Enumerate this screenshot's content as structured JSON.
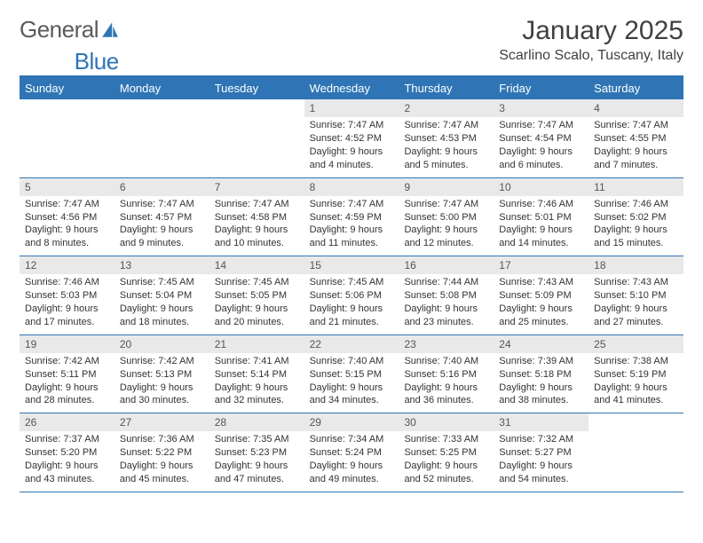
{
  "brand": {
    "part1": "General",
    "part2": "Blue"
  },
  "title": "January 2025",
  "location": "Scarlino Scalo, Tuscany, Italy",
  "colors": {
    "header_bg": "#2f75b5",
    "header_text": "#ffffff",
    "daynum_bg": "#e9e9e9",
    "border": "#2f75b5",
    "body_text": "#333333"
  },
  "weekdays": [
    "Sunday",
    "Monday",
    "Tuesday",
    "Wednesday",
    "Thursday",
    "Friday",
    "Saturday"
  ],
  "weeks": [
    [
      {
        "n": "",
        "lines": []
      },
      {
        "n": "",
        "lines": []
      },
      {
        "n": "",
        "lines": []
      },
      {
        "n": "1",
        "lines": [
          "Sunrise: 7:47 AM",
          "Sunset: 4:52 PM",
          "Daylight: 9 hours",
          "and 4 minutes."
        ]
      },
      {
        "n": "2",
        "lines": [
          "Sunrise: 7:47 AM",
          "Sunset: 4:53 PM",
          "Daylight: 9 hours",
          "and 5 minutes."
        ]
      },
      {
        "n": "3",
        "lines": [
          "Sunrise: 7:47 AM",
          "Sunset: 4:54 PM",
          "Daylight: 9 hours",
          "and 6 minutes."
        ]
      },
      {
        "n": "4",
        "lines": [
          "Sunrise: 7:47 AM",
          "Sunset: 4:55 PM",
          "Daylight: 9 hours",
          "and 7 minutes."
        ]
      }
    ],
    [
      {
        "n": "5",
        "lines": [
          "Sunrise: 7:47 AM",
          "Sunset: 4:56 PM",
          "Daylight: 9 hours",
          "and 8 minutes."
        ]
      },
      {
        "n": "6",
        "lines": [
          "Sunrise: 7:47 AM",
          "Sunset: 4:57 PM",
          "Daylight: 9 hours",
          "and 9 minutes."
        ]
      },
      {
        "n": "7",
        "lines": [
          "Sunrise: 7:47 AM",
          "Sunset: 4:58 PM",
          "Daylight: 9 hours",
          "and 10 minutes."
        ]
      },
      {
        "n": "8",
        "lines": [
          "Sunrise: 7:47 AM",
          "Sunset: 4:59 PM",
          "Daylight: 9 hours",
          "and 11 minutes."
        ]
      },
      {
        "n": "9",
        "lines": [
          "Sunrise: 7:47 AM",
          "Sunset: 5:00 PM",
          "Daylight: 9 hours",
          "and 12 minutes."
        ]
      },
      {
        "n": "10",
        "lines": [
          "Sunrise: 7:46 AM",
          "Sunset: 5:01 PM",
          "Daylight: 9 hours",
          "and 14 minutes."
        ]
      },
      {
        "n": "11",
        "lines": [
          "Sunrise: 7:46 AM",
          "Sunset: 5:02 PM",
          "Daylight: 9 hours",
          "and 15 minutes."
        ]
      }
    ],
    [
      {
        "n": "12",
        "lines": [
          "Sunrise: 7:46 AM",
          "Sunset: 5:03 PM",
          "Daylight: 9 hours",
          "and 17 minutes."
        ]
      },
      {
        "n": "13",
        "lines": [
          "Sunrise: 7:45 AM",
          "Sunset: 5:04 PM",
          "Daylight: 9 hours",
          "and 18 minutes."
        ]
      },
      {
        "n": "14",
        "lines": [
          "Sunrise: 7:45 AM",
          "Sunset: 5:05 PM",
          "Daylight: 9 hours",
          "and 20 minutes."
        ]
      },
      {
        "n": "15",
        "lines": [
          "Sunrise: 7:45 AM",
          "Sunset: 5:06 PM",
          "Daylight: 9 hours",
          "and 21 minutes."
        ]
      },
      {
        "n": "16",
        "lines": [
          "Sunrise: 7:44 AM",
          "Sunset: 5:08 PM",
          "Daylight: 9 hours",
          "and 23 minutes."
        ]
      },
      {
        "n": "17",
        "lines": [
          "Sunrise: 7:43 AM",
          "Sunset: 5:09 PM",
          "Daylight: 9 hours",
          "and 25 minutes."
        ]
      },
      {
        "n": "18",
        "lines": [
          "Sunrise: 7:43 AM",
          "Sunset: 5:10 PM",
          "Daylight: 9 hours",
          "and 27 minutes."
        ]
      }
    ],
    [
      {
        "n": "19",
        "lines": [
          "Sunrise: 7:42 AM",
          "Sunset: 5:11 PM",
          "Daylight: 9 hours",
          "and 28 minutes."
        ]
      },
      {
        "n": "20",
        "lines": [
          "Sunrise: 7:42 AM",
          "Sunset: 5:13 PM",
          "Daylight: 9 hours",
          "and 30 minutes."
        ]
      },
      {
        "n": "21",
        "lines": [
          "Sunrise: 7:41 AM",
          "Sunset: 5:14 PM",
          "Daylight: 9 hours",
          "and 32 minutes."
        ]
      },
      {
        "n": "22",
        "lines": [
          "Sunrise: 7:40 AM",
          "Sunset: 5:15 PM",
          "Daylight: 9 hours",
          "and 34 minutes."
        ]
      },
      {
        "n": "23",
        "lines": [
          "Sunrise: 7:40 AM",
          "Sunset: 5:16 PM",
          "Daylight: 9 hours",
          "and 36 minutes."
        ]
      },
      {
        "n": "24",
        "lines": [
          "Sunrise: 7:39 AM",
          "Sunset: 5:18 PM",
          "Daylight: 9 hours",
          "and 38 minutes."
        ]
      },
      {
        "n": "25",
        "lines": [
          "Sunrise: 7:38 AM",
          "Sunset: 5:19 PM",
          "Daylight: 9 hours",
          "and 41 minutes."
        ]
      }
    ],
    [
      {
        "n": "26",
        "lines": [
          "Sunrise: 7:37 AM",
          "Sunset: 5:20 PM",
          "Daylight: 9 hours",
          "and 43 minutes."
        ]
      },
      {
        "n": "27",
        "lines": [
          "Sunrise: 7:36 AM",
          "Sunset: 5:22 PM",
          "Daylight: 9 hours",
          "and 45 minutes."
        ]
      },
      {
        "n": "28",
        "lines": [
          "Sunrise: 7:35 AM",
          "Sunset: 5:23 PM",
          "Daylight: 9 hours",
          "and 47 minutes."
        ]
      },
      {
        "n": "29",
        "lines": [
          "Sunrise: 7:34 AM",
          "Sunset: 5:24 PM",
          "Daylight: 9 hours",
          "and 49 minutes."
        ]
      },
      {
        "n": "30",
        "lines": [
          "Sunrise: 7:33 AM",
          "Sunset: 5:25 PM",
          "Daylight: 9 hours",
          "and 52 minutes."
        ]
      },
      {
        "n": "31",
        "lines": [
          "Sunrise: 7:32 AM",
          "Sunset: 5:27 PM",
          "Daylight: 9 hours",
          "and 54 minutes."
        ]
      },
      {
        "n": "",
        "lines": []
      }
    ]
  ]
}
